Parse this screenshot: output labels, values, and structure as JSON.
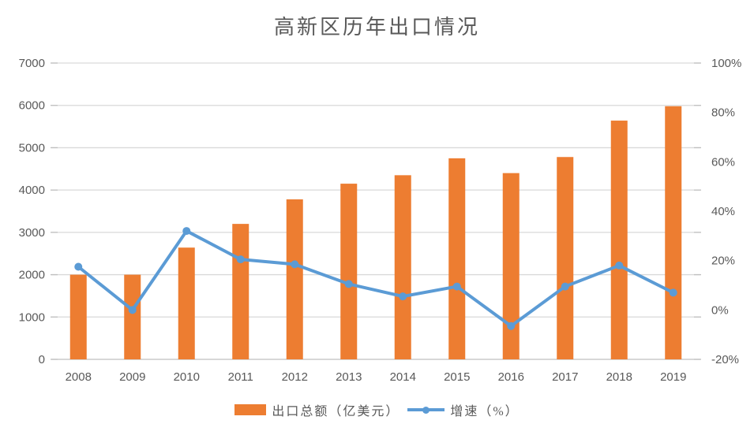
{
  "chart_data": {
    "type": "combo-bar-line",
    "title": "高新区历年出口情况",
    "categories": [
      "2008",
      "2009",
      "2010",
      "2011",
      "2012",
      "2013",
      "2014",
      "2015",
      "2016",
      "2017",
      "2018",
      "2019"
    ],
    "series": [
      {
        "name": "出口总额（亿美元）",
        "type": "bar",
        "axis": "left",
        "color": "#ED7D31",
        "values": [
          2000,
          2000,
          2640,
          3200,
          3780,
          4150,
          4350,
          4750,
          4400,
          4780,
          5640,
          5980
        ]
      },
      {
        "name": "增速（%）",
        "type": "line",
        "axis": "right",
        "color": "#5B9BD5",
        "values": [
          17.5,
          0,
          32,
          20.5,
          18.5,
          10.5,
          5.5,
          9.5,
          -6.5,
          9.5,
          18,
          7
        ]
      }
    ],
    "left_axis": {
      "min": 0,
      "max": 7000,
      "step": 1000,
      "tick_labels": [
        "0",
        "1000",
        "2000",
        "3000",
        "4000",
        "5000",
        "6000",
        "7000"
      ]
    },
    "right_axis": {
      "min": -20,
      "max": 100,
      "step": 20,
      "tick_labels": [
        "-20%",
        "0%",
        "20%",
        "40%",
        "60%",
        "80%",
        "100%"
      ]
    },
    "grid": true,
    "legend_position": "bottom"
  },
  "legend": {
    "items": [
      {
        "label": "出口总额（亿美元）",
        "swatch": "bar",
        "color": "#ED7D31"
      },
      {
        "label": "增速（%）",
        "swatch": "line-marker",
        "color": "#5B9BD5"
      }
    ]
  },
  "colors": {
    "bar": "#ED7D31",
    "line": "#5B9BD5",
    "grid": "#D9D9D9",
    "axis_line": "#BFBFBF",
    "text": "#595959",
    "background": "#FFFFFF"
  }
}
